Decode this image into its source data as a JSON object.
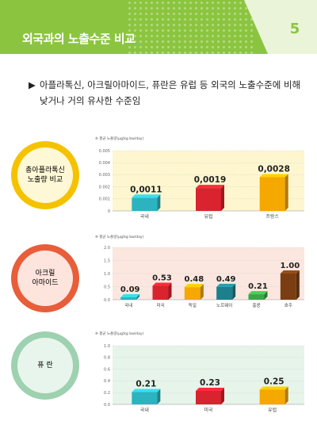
{
  "header": {
    "title": "외국과의 노출수준 비교",
    "number": "5"
  },
  "intro": {
    "line1": "아플라톡신, 아크릴아마이드, 퓨란은 유럽 등 외국의 노출수준에 비해",
    "line2": "낮거나 거의 유사한 수준임"
  },
  "colors": {
    "header_green": "#8bc53f",
    "teal": "#2bb3c0",
    "red": "#d9232e",
    "yellow": "#f5a800"
  },
  "chart_data": [
    {
      "type": "bar",
      "circle_label_lines": [
        "총아플라톡신",
        "노출량 비교"
      ],
      "ylabel": "※ 평균 노출량(μg/kg bw/day)",
      "ylim": [
        0,
        0.005
      ],
      "yticks": [
        "0.005",
        "0.004",
        "0.003",
        "0.002",
        "0.001",
        "0"
      ],
      "categories": [
        "국내",
        "유럽",
        "프랑스"
      ],
      "values": [
        0.0011,
        0.0019,
        0.0028
      ],
      "value_labels": [
        "0,0011",
        "0,0019",
        "0,0028"
      ],
      "colors": [
        "#2bb3c0",
        "#d9232e",
        "#f5a800"
      ]
    },
    {
      "type": "bar",
      "circle_label_lines": [
        "아크릴",
        "아마이드"
      ],
      "ylabel": "※ 평균 노출량(μg/kg bw/day)",
      "ylim": [
        0,
        2.0
      ],
      "yticks": [
        "2.0",
        "1.5",
        "1.0",
        "0.5",
        "0.0"
      ],
      "categories": [
        "국내",
        "미국",
        "독일",
        "노르웨이",
        "홍콩",
        "호주"
      ],
      "values": [
        0.09,
        0.53,
        0.48,
        0.49,
        0.21,
        1.0
      ],
      "value_labels": [
        "0.09",
        "0.53",
        "0.48",
        "0.49",
        "0.21",
        "1.00"
      ],
      "colors": [
        "#2bb3c0",
        "#d9232e",
        "#f5a800",
        "#1d7f8c",
        "#3aa648",
        "#7a3e12"
      ]
    },
    {
      "type": "bar",
      "circle_label_lines": [
        "퓨 란"
      ],
      "ylabel": "※ 평균 노출량(μg/kg bw/day)",
      "ylim": [
        0,
        1.0
      ],
      "yticks": [
        "1.0",
        "0.8",
        "0.6",
        "0.4",
        "0.2",
        "0.0"
      ],
      "categories": [
        "국내",
        "미국",
        "유럽"
      ],
      "values": [
        0.21,
        0.23,
        0.25
      ],
      "value_labels": [
        "0.21",
        "0.23",
        "0.25"
      ],
      "colors": [
        "#2bb3c0",
        "#d9232e",
        "#f5a800"
      ]
    }
  ]
}
